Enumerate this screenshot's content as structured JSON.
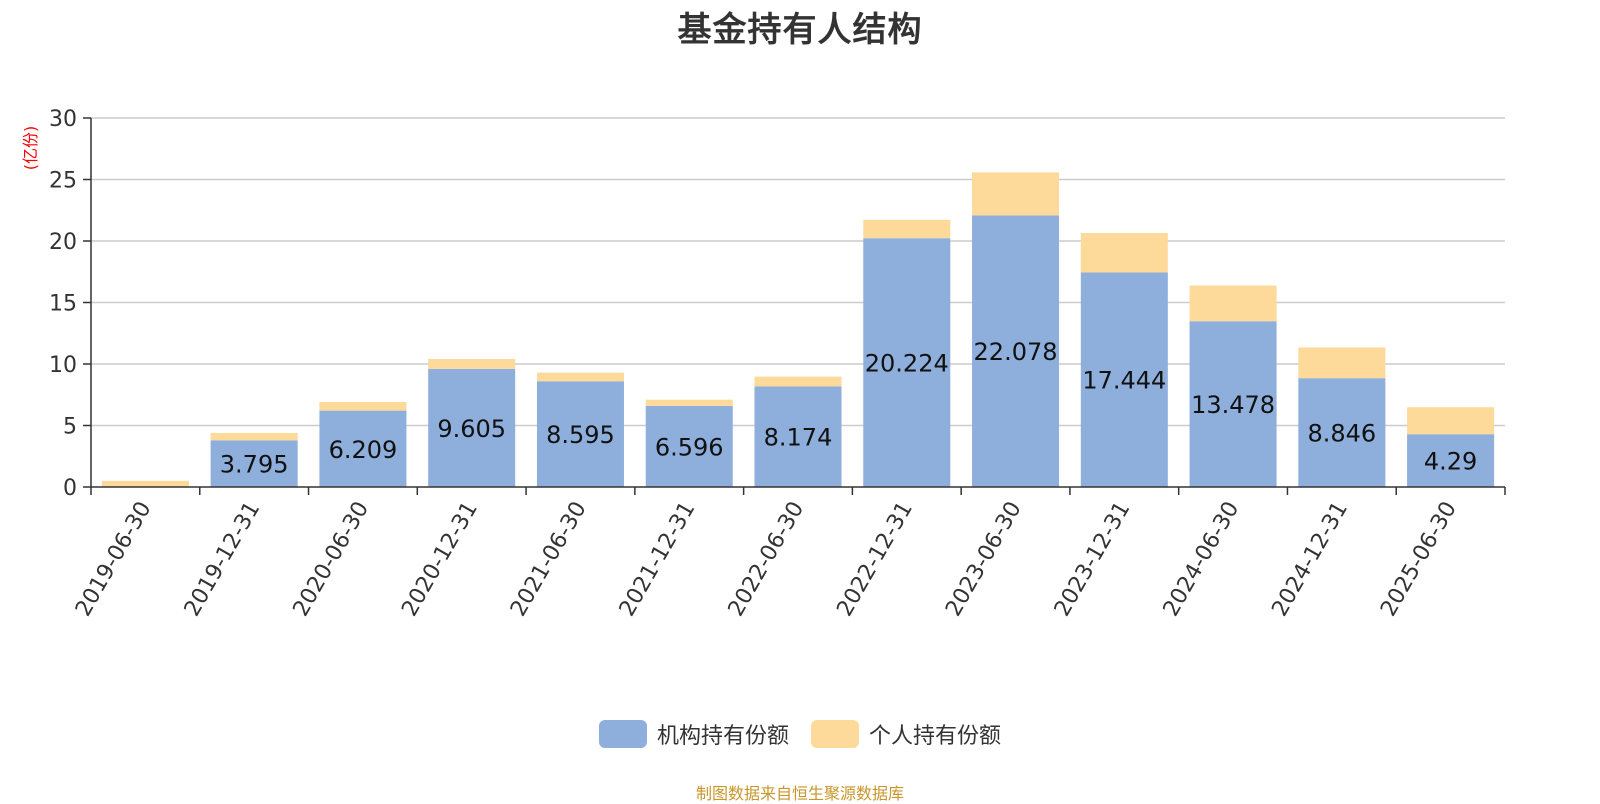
{
  "chart_data": {
    "type": "bar",
    "stacked": true,
    "title": "基金持有人结构",
    "ylabel": "(亿份)",
    "xlabel": "",
    "ylim": [
      0,
      30
    ],
    "yticks": [
      0,
      5,
      10,
      15,
      20,
      25,
      30
    ],
    "grid": true,
    "legend_position": "bottom",
    "categories": [
      "2019-06-30",
      "2019-12-31",
      "2020-06-30",
      "2020-12-31",
      "2021-06-30",
      "2021-12-31",
      "2022-06-30",
      "2022-12-31",
      "2023-06-30",
      "2023-12-31",
      "2024-06-30",
      "2024-12-31",
      "2025-06-30"
    ],
    "series": [
      {
        "name": "机构持有份额",
        "color": "#8eaedc",
        "values": [
          0,
          3.795,
          6.209,
          9.605,
          8.595,
          6.596,
          8.174,
          20.224,
          22.078,
          17.444,
          13.478,
          8.846,
          4.29
        ],
        "labels": [
          "",
          "3.795",
          "6.209",
          "9.605",
          "8.595",
          "6.596",
          "8.174",
          "20.224",
          "22.078",
          "17.444",
          "13.478",
          "8.846",
          "4.29"
        ]
      },
      {
        "name": "个人持有份额",
        "color": "#fdd99a",
        "values": [
          0.5,
          0.6,
          0.7,
          0.8,
          0.7,
          0.5,
          0.8,
          1.5,
          3.5,
          3.2,
          2.9,
          2.5,
          2.2
        ]
      }
    ]
  },
  "source_note": "制图数据来自恒生聚源数据库",
  "colors": {
    "axis": "#333333",
    "grid": "#cccccc",
    "ylabel": "#ff0000",
    "source_note": "#c8962a"
  }
}
